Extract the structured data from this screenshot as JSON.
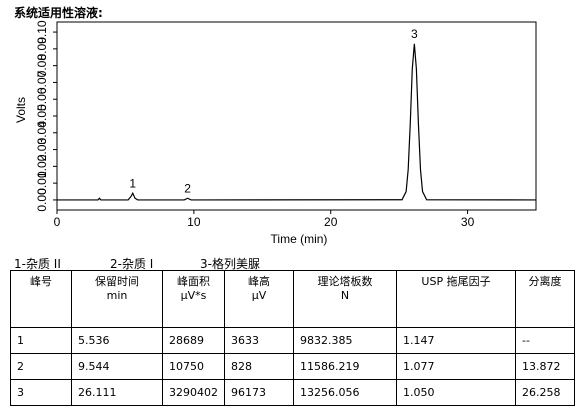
{
  "heading": "系统适用性溶液:",
  "chart_data": {
    "type": "line",
    "ylabel": "Volts",
    "xlabel": "Time (min)",
    "xlim": [
      0,
      35
    ],
    "ylim": [
      -0.006,
      0.106
    ],
    "xticks": [
      0,
      10,
      20,
      30
    ],
    "yticks": [
      {
        "value": 0,
        "label": "0.00"
      },
      {
        "value": 0.01,
        "label": "0.01"
      },
      {
        "value": 0.02,
        "label": "0.02"
      },
      {
        "value": 0.03,
        "label": "0.03"
      },
      {
        "value": 0.04,
        "label": "0.04"
      },
      {
        "value": 0.05,
        "label": "0.05"
      },
      {
        "value": 0.06,
        "label": "0.06"
      },
      {
        "value": 0.07,
        "label": "0.07"
      },
      {
        "value": 0.08,
        "label": "0.08"
      },
      {
        "value": 0.09,
        "label": "0.09"
      },
      {
        "value": 0.1,
        "label": "0.10"
      }
    ],
    "series": [
      {
        "color": "#000000",
        "x": [
          0,
          3.0,
          3.1,
          3.2,
          5.2,
          5.4,
          5.536,
          5.7,
          5.9,
          9.3,
          9.544,
          9.8,
          25.21,
          25.51,
          25.66,
          25.81,
          25.96,
          26.111,
          26.26,
          26.41,
          26.56,
          26.71,
          27.01,
          35
        ],
        "values": [
          0,
          0,
          0.001,
          0,
          0,
          0.002,
          0.004,
          0.001,
          0,
          0,
          0.001,
          0,
          0.0001,
          0.005,
          0.018,
          0.045,
          0.078,
          0.093,
          0.078,
          0.045,
          0.018,
          0.005,
          0.0001,
          0
        ]
      }
    ],
    "annotations": [
      {
        "text": "1",
        "x": 5.536,
        "y": 0.004
      },
      {
        "text": "2",
        "x": 9.544,
        "y": 0.001
      },
      {
        "text": "3",
        "x": 26.111,
        "y": 0.093
      }
    ]
  },
  "legend": [
    "1-杂质 II",
    "2-杂质 I",
    "3-格列美脲"
  ],
  "table": {
    "header": [
      [
        "峰号"
      ],
      [
        "保留时间",
        "min"
      ],
      [
        "峰面积",
        "μV*s"
      ],
      [
        "峰高",
        "μV"
      ],
      [
        "理论塔板数",
        "N"
      ],
      [
        "USP 拖尾因子"
      ],
      [
        "分离度"
      ]
    ],
    "rows": [
      [
        "1",
        "5.536",
        "28689",
        "3633",
        "9832.385",
        "1.147",
        "--"
      ],
      [
        "2",
        "9.544",
        "10750",
        "828",
        "11586.219",
        "1.077",
        "13.872"
      ],
      [
        "3",
        "26.111",
        "3290402",
        "96173",
        "13256.056",
        "1.050",
        "26.258"
      ]
    ]
  }
}
